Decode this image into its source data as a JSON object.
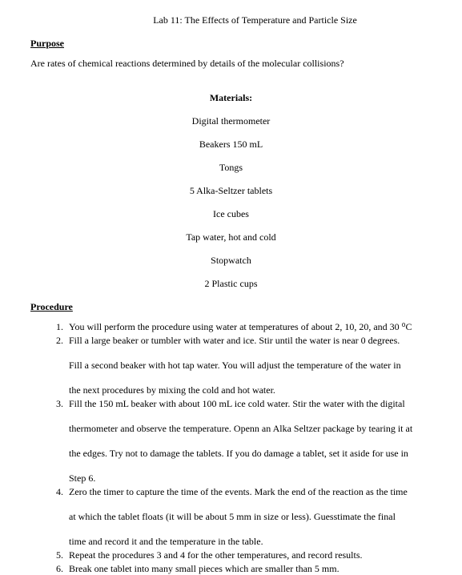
{
  "title": "Lab 11: The Effects of Temperature and Particle Size",
  "purpose": {
    "heading": "Purpose",
    "text": "Are rates of chemical reactions determined by details of the molecular collisions?"
  },
  "materials": {
    "heading": "Materials:",
    "items": [
      "Digital thermometer",
      "Beakers 150 mL",
      "Tongs",
      "5 Alka-Seltzer tablets",
      "Ice cubes",
      "Tap water, hot and cold",
      "Stopwatch",
      "2 Plastic cups"
    ]
  },
  "procedure": {
    "heading": "Procedure",
    "steps": [
      {
        "paras": [
          "You will perform the procedure using water at temperatures of about 2, 10, 20, and 30 ⁰C"
        ]
      },
      {
        "paras": [
          "Fill a large beaker or tumbler with water and ice. Stir until  the water is near 0 degrees.",
          "Fill a second beaker with hot tap water. You will adjust the temperature of the water in",
          "the next procedures by mixing the cold and hot water."
        ]
      },
      {
        "paras": [
          "Fill the 150 mL beaker with about 100 mL ice cold water. Stir the water with the digital",
          "thermometer and observe the temperature. Openn an Alka Seltzer package by tearing it at",
          "the edges. Try not to damage the tablets. If you do damage a tablet, set it aside for use in",
          "Step 6."
        ]
      },
      {
        "paras": [
          "Zero the timer to capture the time of the events. Mark the end of the reaction as the time",
          "at which the tablet floats (it will be about 5 mm in size or less). Guesstimate the final",
          "time and record it and the temperature in the table."
        ]
      },
      {
        "paras": [
          "Repeat the procedures 3 and 4 for the other temperatures, and record results."
        ]
      },
      {
        "paras": [
          "Break one tablet into many small pieces which are smaller than 5 mm."
        ]
      }
    ]
  }
}
